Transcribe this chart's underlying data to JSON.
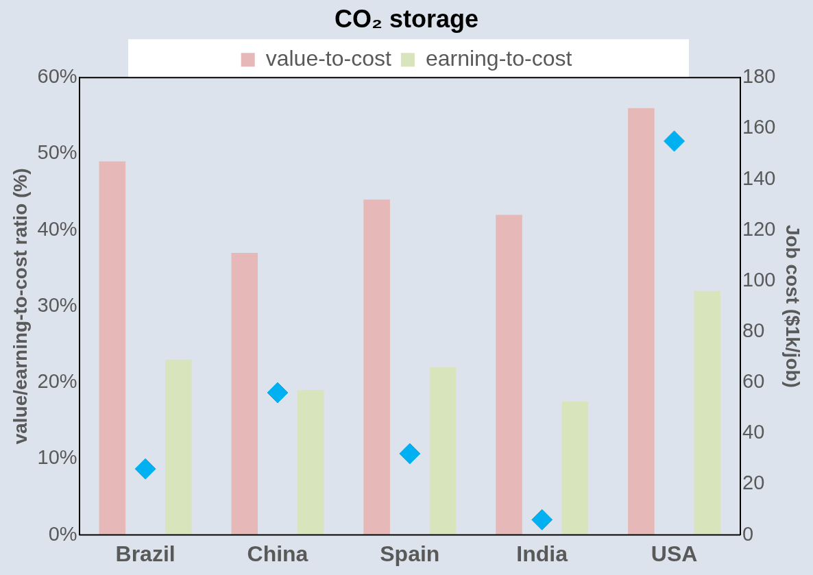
{
  "chart_data": {
    "type": "bar",
    "title": "CO₂ storage",
    "categories": [
      "Brazil",
      "China",
      "Spain",
      "India",
      "USA"
    ],
    "series": [
      {
        "name": "value-to-cost",
        "color": "#e6b8b7",
        "values": [
          49,
          37,
          44,
          42,
          56
        ]
      },
      {
        "name": "earning-to-cost",
        "color": "#d8e4bc",
        "values": [
          23,
          19,
          22,
          17.5,
          32
        ]
      },
      {
        "type": "scatter",
        "color": "#00b0f0",
        "axis": "y2",
        "marker": "diamond",
        "values": [
          26,
          56,
          32,
          6,
          155
        ]
      }
    ],
    "ylabel": "value/earning-to-cost ratio (%)",
    "y2label": "Job cost ($1k/job)",
    "ylim": [
      0,
      60
    ],
    "yticks": [
      {
        "value": 0,
        "label": "0%"
      },
      {
        "value": 10,
        "label": "10%"
      },
      {
        "value": 20,
        "label": "20%"
      },
      {
        "value": 30,
        "label": "30%"
      },
      {
        "value": 40,
        "label": "40%"
      },
      {
        "value": 50,
        "label": "50%"
      },
      {
        "value": 60,
        "label": "60%"
      }
    ],
    "y2lim": [
      0,
      180
    ],
    "y2ticks": [
      0,
      20,
      40,
      60,
      80,
      100,
      120,
      140,
      160,
      180
    ],
    "grid": false,
    "legend": "top"
  }
}
